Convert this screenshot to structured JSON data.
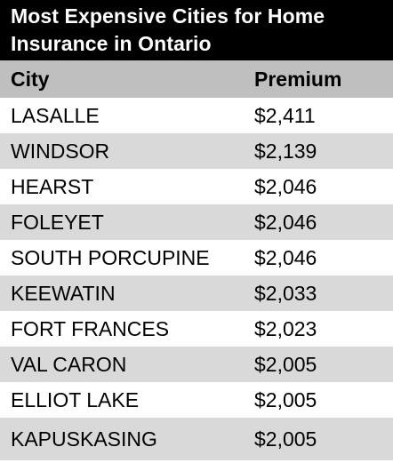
{
  "title": {
    "line1": "Most Expensive Cities for Home",
    "line2": "Insurance in Ontario"
  },
  "table": {
    "headers": {
      "city": "City",
      "premium": "Premium"
    },
    "rows": [
      {
        "city": "LASALLE",
        "premium": "$2,411"
      },
      {
        "city": "WINDSOR",
        "premium": "$2,139"
      },
      {
        "city": "HEARST",
        "premium": "$2,046"
      },
      {
        "city": "FOLEYET",
        "premium": "$2,046"
      },
      {
        "city": "SOUTH PORCUPINE",
        "premium": "$2,046"
      },
      {
        "city": "KEEWATIN",
        "premium": "$2,033"
      },
      {
        "city": "FORT FRANCES",
        "premium": "$2,023"
      },
      {
        "city": "VAL CARON",
        "premium": "$2,005"
      },
      {
        "city": "ELLIOT LAKE",
        "premium": "$2,005"
      },
      {
        "city": "KAPUSKASING",
        "premium": "$2,005"
      }
    ]
  },
  "colors": {
    "title_bg": "#000000",
    "header_bg": "#bfbfbf",
    "alt_row_bg": "#d9d9d9",
    "plain_row_bg": "#ffffff"
  }
}
